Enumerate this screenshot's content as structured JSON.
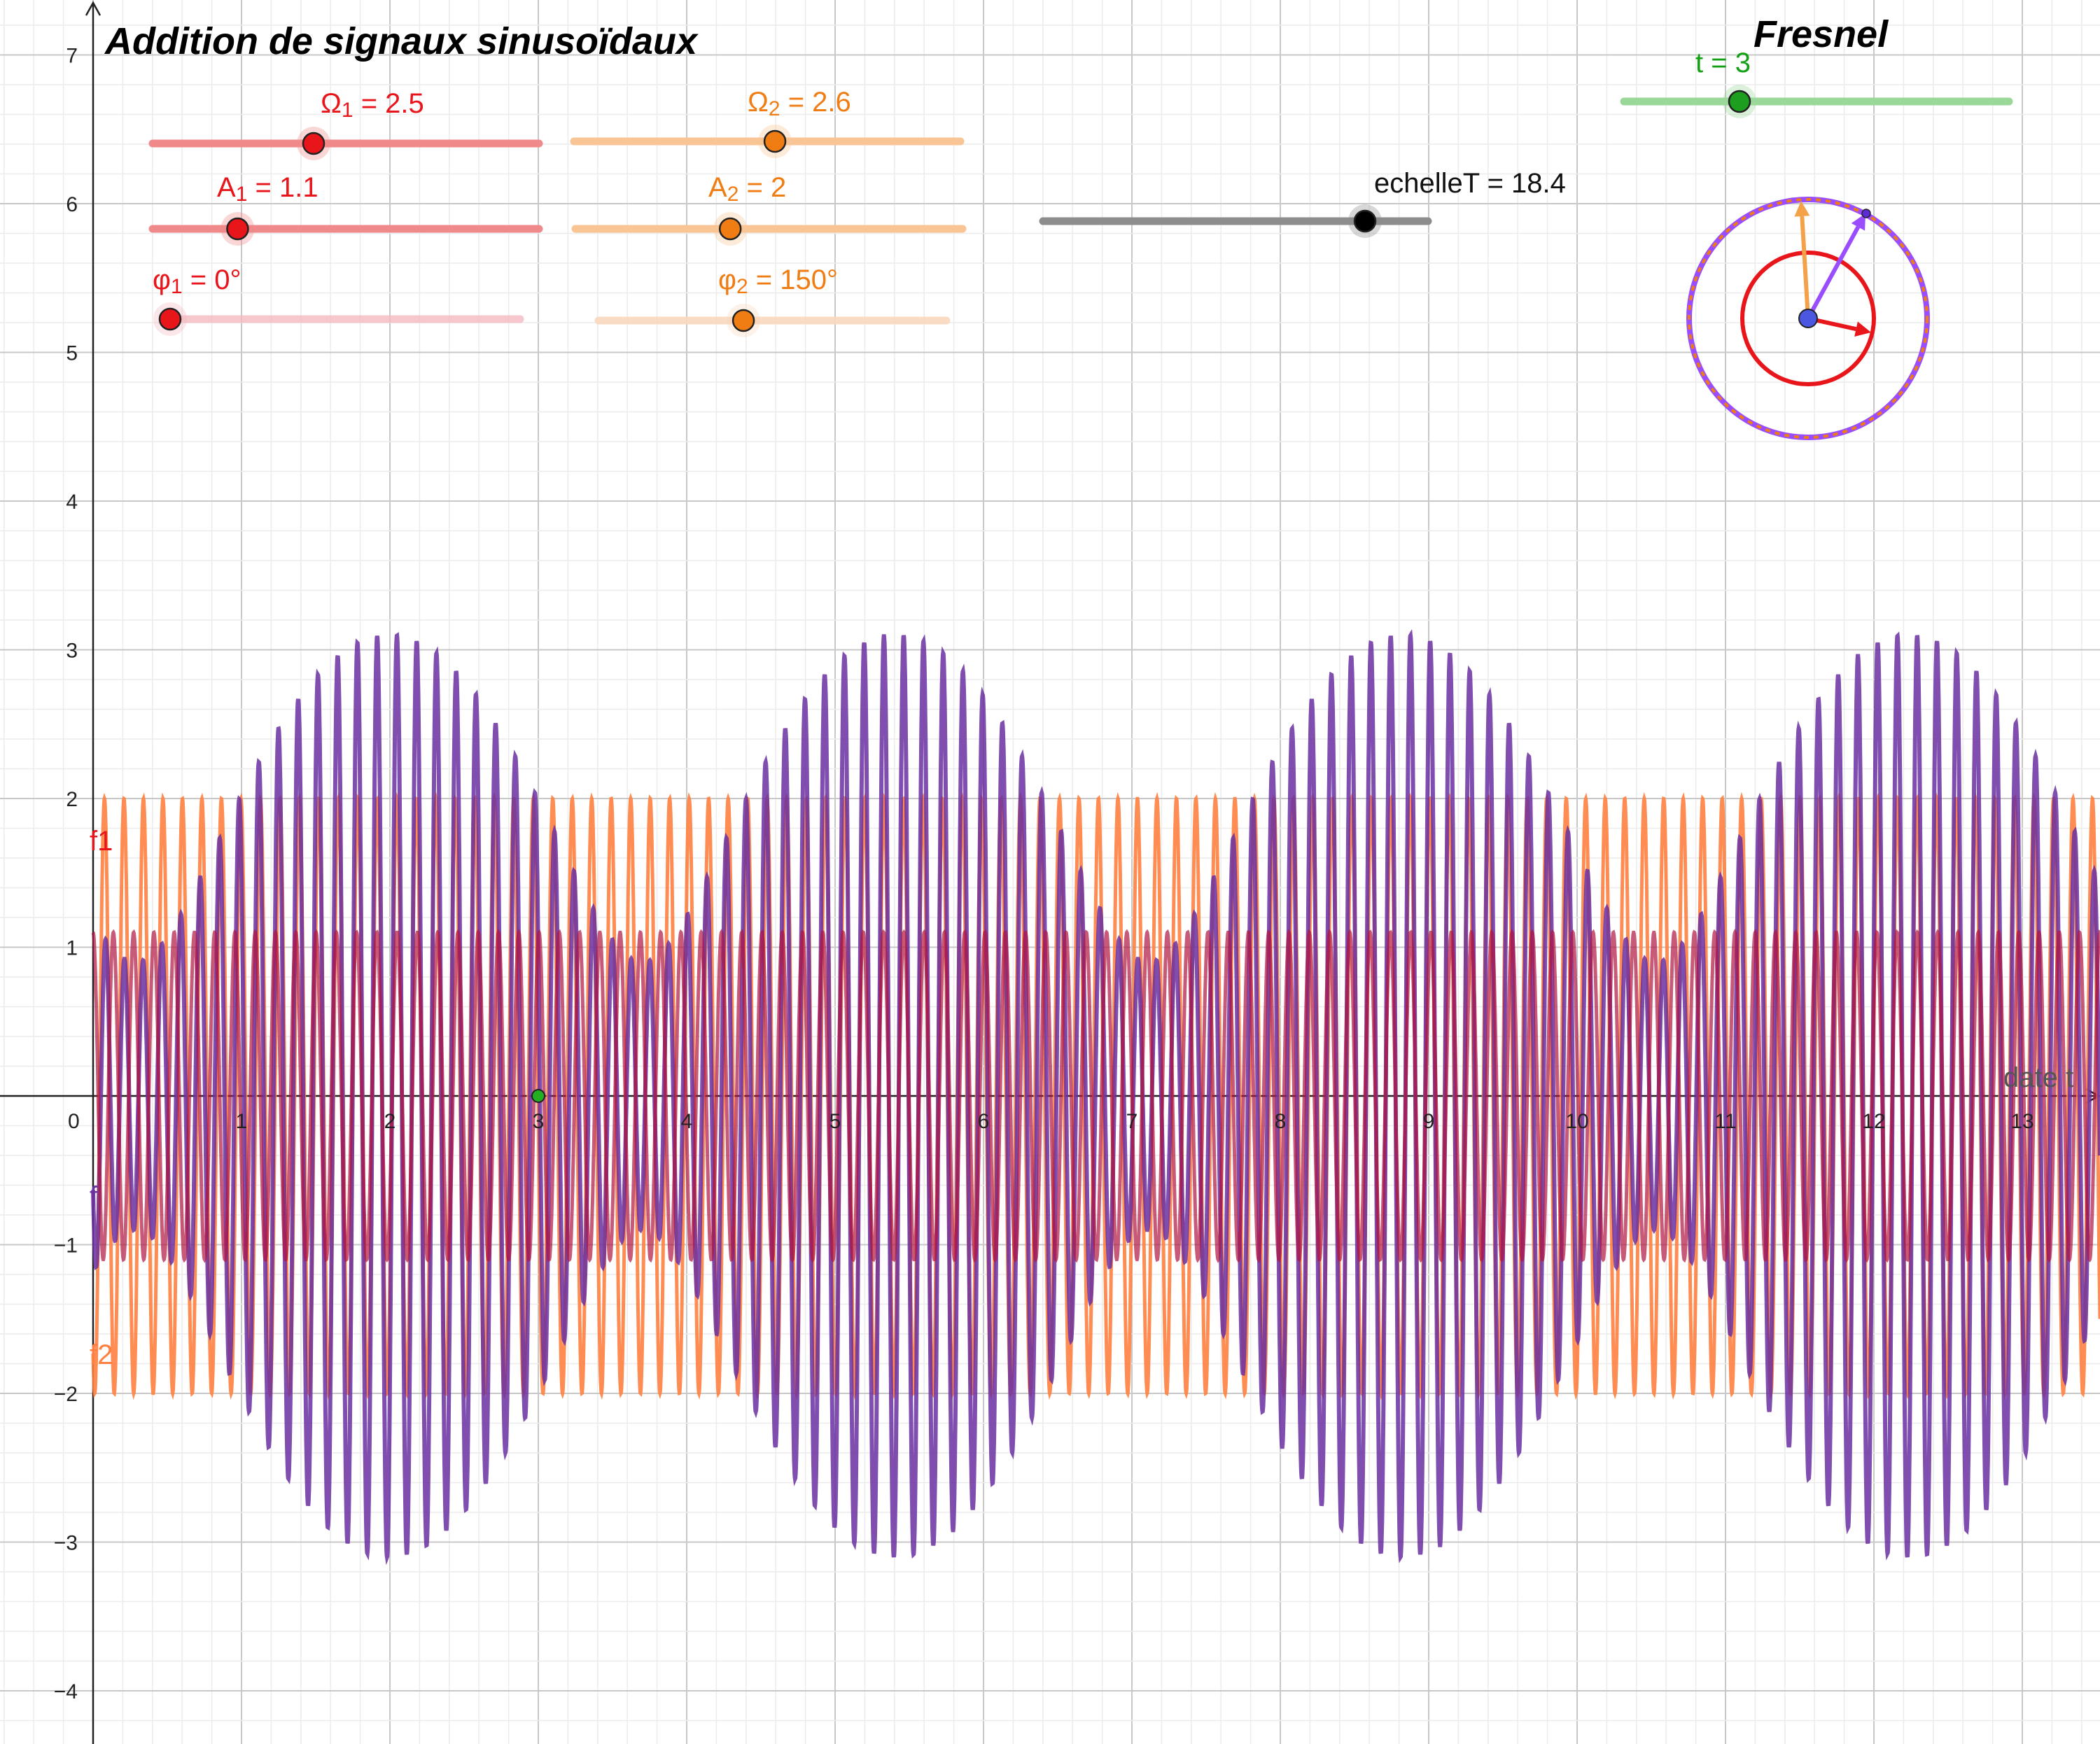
{
  "title": "Addition de signaux sinusoïdaux",
  "fresnel_title": "Fresnel",
  "sliders": {
    "omega1": {
      "symbol": "Ω",
      "sub": "1",
      "text": " = 2.5",
      "value": 2.5,
      "min": 0,
      "max": 6
    },
    "omega2": {
      "symbol": "Ω",
      "sub": "2",
      "text": " = 2.6",
      "value": 2.6,
      "min": 0,
      "max": 5
    },
    "A1": {
      "symbol": "A",
      "sub": "1",
      "text": " = 1.1",
      "value": 1.1,
      "min": 0,
      "max": 5
    },
    "A2": {
      "symbol": "A",
      "sub": "2",
      "text": " = 2",
      "value": 2,
      "min": 0,
      "max": 5
    },
    "phi1": {
      "symbol": "φ",
      "sub": "1",
      "text": " = 0°",
      "value": 0,
      "min": 0,
      "max": 360
    },
    "phi2": {
      "symbol": "φ",
      "sub": "2",
      "text": " = 150°",
      "value": 150,
      "min": 0,
      "max": 360
    },
    "echelleT": {
      "text": "echelleT = 18.4",
      "value": 18.4,
      "min": 0,
      "max": 22
    },
    "t": {
      "text": "t = 3",
      "value": 3,
      "min": 0,
      "max": 10
    }
  },
  "graph": {
    "x_axis_label": "date t",
    "xlim": [
      -0.6,
      13.5
    ],
    "ylim": [
      -4.5,
      7.3
    ],
    "x_ticks": [
      "0",
      "1",
      "2",
      "3",
      "4",
      "5",
      "6",
      "7",
      "8",
      "9",
      "10",
      "11",
      "12",
      "13"
    ],
    "y_ticks": [
      {
        "value": -4,
        "label": "−4"
      },
      {
        "value": -3,
        "label": "−3"
      },
      {
        "value": -2,
        "label": "−2"
      },
      {
        "value": -1,
        "label": "−1"
      },
      {
        "value": 1,
        "label": "1"
      },
      {
        "value": 2,
        "label": "2"
      },
      {
        "value": 3,
        "label": "3"
      },
      {
        "value": 4,
        "label": "4"
      },
      {
        "value": 5,
        "label": "5"
      },
      {
        "value": 6,
        "label": "6"
      },
      {
        "value": 7,
        "label": "7"
      }
    ],
    "origin_label": "0",
    "curve_labels": {
      "f1": "f1",
      "f2": "f2",
      "f": "f"
    }
  },
  "colors": {
    "red": "#e8151b",
    "orange": "#f07d14",
    "orange_curve": "#ff7f3f",
    "purple": "#6a2fa0",
    "green": "#2bb32b",
    "blue": "#4b57e0",
    "violet": "#9a4cff",
    "grid_major": "#c8c8c8",
    "grid_minor": "#ececec"
  }
}
